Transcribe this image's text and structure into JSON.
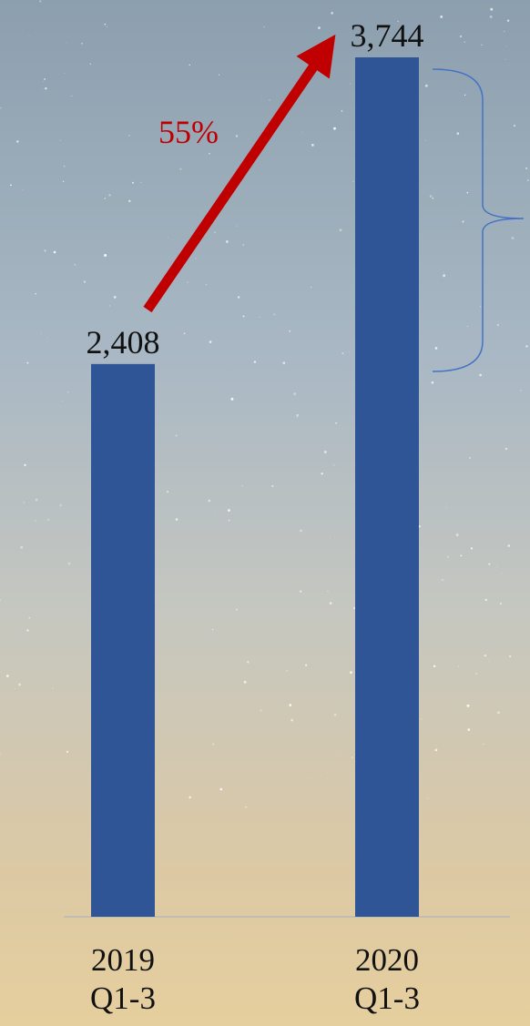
{
  "chart_data": {
    "type": "bar",
    "categories": [
      "2019\nQ1-3",
      "2020\nQ1-3"
    ],
    "values": [
      2408,
      3744
    ],
    "value_labels": [
      "2,408",
      "3,744"
    ],
    "color": "#2f5597",
    "annotation": "55%"
  }
}
